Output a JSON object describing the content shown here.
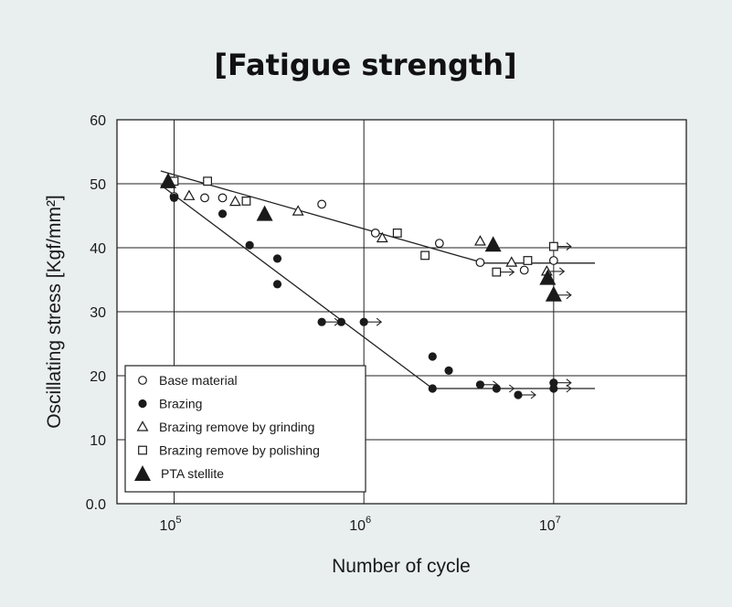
{
  "chart_data": {
    "type": "scatter",
    "title": "[Fatigue strength]",
    "xlabel": "Number of cycle",
    "ylabel": "Oscillating stress [Kgf/mm²]",
    "xscale": "log",
    "xlim": [
      50000,
      50000000
    ],
    "ylim": [
      0,
      60
    ],
    "yticks": [
      "0.0",
      "10",
      "20",
      "30",
      "40",
      "50",
      "60"
    ],
    "xticks": [
      {
        "value": 100000,
        "base": "10",
        "exp": "5"
      },
      {
        "value": 1000000,
        "base": "10",
        "exp": "6"
      },
      {
        "value": 10000000,
        "base": "10",
        "exp": "7"
      }
    ],
    "grid": true,
    "legend_position": "bottom-left",
    "colors": {
      "marker": "#1a1a1a",
      "open_fill": "#ffffff",
      "background": "#e9eeee",
      "plot_bg": "#ffffff"
    },
    "series": [
      {
        "name": "Base material",
        "marker": "circle-open",
        "points": [
          {
            "x": 100000,
            "y": 48
          },
          {
            "x": 145000,
            "y": 47.8
          },
          {
            "x": 180000,
            "y": 47.8
          },
          {
            "x": 600000,
            "y": 46.8
          },
          {
            "x": 1150000,
            "y": 42.3
          },
          {
            "x": 2500000,
            "y": 40.7
          },
          {
            "x": 4100000,
            "y": 37.7
          },
          {
            "x": 7000000,
            "y": 36.5
          },
          {
            "x": 10000000,
            "y": 38
          }
        ]
      },
      {
        "name": "Brazing",
        "marker": "circle-filled",
        "points": [
          {
            "x": 100000,
            "y": 47.8
          },
          {
            "x": 180000,
            "y": 45.3
          },
          {
            "x": 250000,
            "y": 40.4
          },
          {
            "x": 350000,
            "y": 38.3
          },
          {
            "x": 350000,
            "y": 34.3
          },
          {
            "x": 600000,
            "y": 28.4,
            "runout": true
          },
          {
            "x": 760000,
            "y": 28.4
          },
          {
            "x": 1000000,
            "y": 28.4,
            "runout": true
          },
          {
            "x": 2300000,
            "y": 23
          },
          {
            "x": 2800000,
            "y": 20.8
          },
          {
            "x": 2300000,
            "y": 18
          },
          {
            "x": 4100000,
            "y": 18.6,
            "runout": true
          },
          {
            "x": 5000000,
            "y": 18,
            "runout": true
          },
          {
            "x": 6500000,
            "y": 17,
            "runout": true
          },
          {
            "x": 10000000,
            "y": 18.9,
            "runout": true
          },
          {
            "x": 10000000,
            "y": 18,
            "runout": true
          }
        ]
      },
      {
        "name": "Brazing remove by grinding",
        "marker": "triangle-open",
        "points": [
          {
            "x": 120000,
            "y": 48.1
          },
          {
            "x": 210000,
            "y": 47.2
          },
          {
            "x": 450000,
            "y": 45.7
          },
          {
            "x": 1250000,
            "y": 41.5
          },
          {
            "x": 4100000,
            "y": 41
          },
          {
            "x": 6000000,
            "y": 37.7
          },
          {
            "x": 9200000,
            "y": 36.3,
            "runout": true
          }
        ]
      },
      {
        "name": "Brazing remove by polishing",
        "marker": "square-open",
        "points": [
          {
            "x": 100000,
            "y": 50.4
          },
          {
            "x": 150000,
            "y": 50.4
          },
          {
            "x": 240000,
            "y": 47.3
          },
          {
            "x": 1500000,
            "y": 42.3
          },
          {
            "x": 2100000,
            "y": 38.8
          },
          {
            "x": 5000000,
            "y": 36.2,
            "runout": true
          },
          {
            "x": 7300000,
            "y": 38
          },
          {
            "x": 10000000,
            "y": 40.2,
            "runout": true
          }
        ]
      },
      {
        "name": "PTA stellite",
        "marker": "triangle-filled",
        "points": [
          {
            "x": 93000,
            "y": 50.3
          },
          {
            "x": 300000,
            "y": 45.2
          },
          {
            "x": 4800000,
            "y": 40.4
          },
          {
            "x": 9300000,
            "y": 35.2
          },
          {
            "x": 10000000,
            "y": 32.6,
            "runout": true
          }
        ]
      }
    ],
    "trend_lines": [
      {
        "points": [
          [
            85000,
            52
          ],
          [
            4300000,
            37.6
          ],
          [
            16500000,
            37.6
          ]
        ]
      },
      {
        "points": [
          [
            85000,
            49.8
          ],
          [
            2300000,
            18
          ],
          [
            16500000,
            18
          ]
        ]
      }
    ]
  }
}
